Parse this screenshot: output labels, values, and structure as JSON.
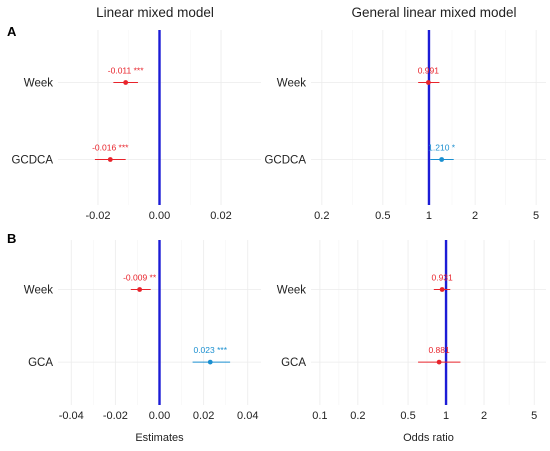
{
  "sections": [
    "A",
    "B"
  ],
  "columns": {
    "left_title": "Linear mixed model",
    "right_title": "General linear mixed model"
  },
  "colors": {
    "positive": "#1a8fd0",
    "negative": "#e8232b",
    "reference_line": "#1c1cd6"
  },
  "chart_data": [
    {
      "panel": "A-left",
      "type": "scatter",
      "title": "Linear mixed model",
      "xlabel": "",
      "x_scale": "linear",
      "xlim": [
        -0.033,
        0.033
      ],
      "reference": 0,
      "xticks": [
        -0.02,
        0,
        0.02
      ],
      "xtick_labels": [
        "-0.02",
        "0.00",
        "0.02"
      ],
      "categories": [
        "Week",
        "GCDCA"
      ],
      "estimates": [
        -0.011,
        -0.016
      ],
      "ci_low": [
        -0.015,
        -0.021
      ],
      "ci_high": [
        -0.007,
        -0.011
      ],
      "labels": [
        "-0.011 ***",
        "-0.016 ***"
      ],
      "grid": true
    },
    {
      "panel": "A-right",
      "type": "scatter",
      "title": "General linear mixed model",
      "xlabel": "",
      "x_scale": "log",
      "xlim": [
        0.17,
        5.8
      ],
      "reference": 1,
      "xticks": [
        0.2,
        0.5,
        1,
        2,
        5
      ],
      "xtick_labels": [
        "0.2",
        "0.5",
        "1",
        "2",
        "5"
      ],
      "categories": [
        "Week",
        "GCDCA"
      ],
      "estimates": [
        0.991,
        1.21
      ],
      "ci_low": [
        0.85,
        1.02
      ],
      "ci_high": [
        1.17,
        1.45
      ],
      "labels": [
        "0.991",
        "1.210 *"
      ],
      "grid": true
    },
    {
      "panel": "B-left",
      "type": "scatter",
      "title": "",
      "xlabel": "Estimates",
      "x_scale": "linear",
      "xlim": [
        -0.046,
        0.046
      ],
      "reference": 0,
      "xticks": [
        -0.04,
        -0.02,
        0,
        0.02,
        0.04
      ],
      "xtick_labels": [
        "-0.04",
        "-0.02",
        "0.00",
        "0.02",
        "0.04"
      ],
      "categories": [
        "Week",
        "GCA"
      ],
      "estimates": [
        -0.009,
        0.023
      ],
      "ci_low": [
        -0.013,
        0.015
      ],
      "ci_high": [
        -0.004,
        0.032
      ],
      "labels": [
        "-0.009 **",
        "0.023 ***"
      ],
      "grid": true
    },
    {
      "panel": "B-right",
      "type": "scatter",
      "title": "",
      "xlabel": "Odds ratio",
      "x_scale": "log",
      "xlim": [
        0.085,
        6.2
      ],
      "reference": 1,
      "xticks": [
        0.1,
        0.2,
        0.5,
        1,
        2,
        5
      ],
      "xtick_labels": [
        "0.1",
        "0.2",
        "0.5",
        "1",
        "2",
        "5"
      ],
      "categories": [
        "Week",
        "GCA"
      ],
      "estimates": [
        0.931,
        0.881
      ],
      "ci_low": [
        0.8,
        0.6
      ],
      "ci_high": [
        1.08,
        1.3
      ],
      "labels": [
        "0.931",
        "0.881"
      ],
      "grid": true
    }
  ]
}
